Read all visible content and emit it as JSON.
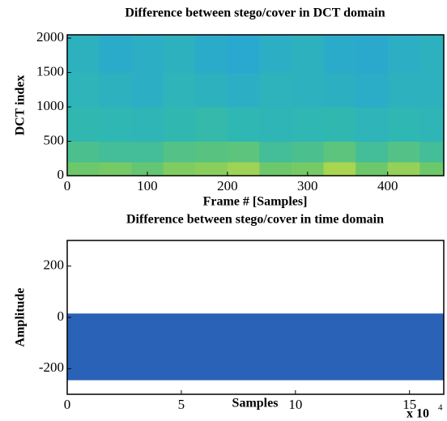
{
  "chart_data": [
    {
      "type": "heatmap",
      "title": "Difference between stego/cover in DCT domain",
      "xlabel": "Frame # [Samples]",
      "ylabel": "DCT index",
      "xbins": [
        0,
        40,
        80,
        120,
        160,
        200,
        240,
        280,
        320,
        360,
        400,
        440,
        470
      ],
      "ybins": [
        0,
        200,
        500,
        1000,
        1500,
        2048
      ],
      "z": [
        [
          0.6,
          0.62,
          0.58,
          0.64,
          0.66,
          0.7,
          0.6,
          0.62,
          0.72,
          0.6,
          0.68,
          0.6
        ],
        [
          0.52,
          0.5,
          0.5,
          0.54,
          0.55,
          0.56,
          0.5,
          0.52,
          0.56,
          0.5,
          0.54,
          0.5
        ],
        [
          0.45,
          0.44,
          0.43,
          0.45,
          0.46,
          0.44,
          0.43,
          0.44,
          0.45,
          0.42,
          0.44,
          0.43
        ],
        [
          0.42,
          0.4,
          0.38,
          0.42,
          0.4,
          0.38,
          0.41,
          0.4,
          0.39,
          0.37,
          0.4,
          0.4
        ],
        [
          0.4,
          0.36,
          0.38,
          0.4,
          0.36,
          0.34,
          0.38,
          0.4,
          0.36,
          0.35,
          0.38,
          0.4
        ]
      ],
      "clim": [
        0.3,
        0.75
      ],
      "colormap": [
        "#27a2db",
        "#30b8b0",
        "#6cc86a",
        "#b8d84a"
      ],
      "xlim": [
        0,
        470
      ],
      "xticks": [
        0,
        100,
        200,
        300,
        400
      ],
      "ylim": [
        0,
        2048
      ],
      "yticks": [
        0,
        500,
        1000,
        1500,
        2000
      ]
    },
    {
      "type": "band",
      "title": "Difference between stego/cover in time domain",
      "xlabel": "Samples",
      "ylabel": "Amplitude",
      "x_multiplier": "x 10",
      "x_exponent": "4",
      "x": [
        0,
        16.5
      ],
      "upper": [
        15,
        15
      ],
      "lower": [
        -245,
        -245
      ],
      "color": "#2a62b8",
      "xlim": [
        0,
        16.5
      ],
      "xticks": [
        0,
        5,
        10,
        15
      ],
      "ylim": [
        -300,
        300
      ],
      "yticks": [
        -200,
        0,
        200
      ]
    }
  ]
}
